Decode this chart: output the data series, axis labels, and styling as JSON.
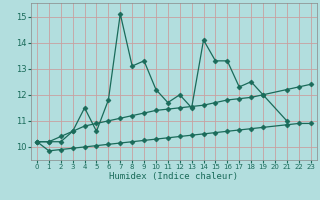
{
  "xlabel": "Humidex (Indice chaleur)",
  "xlim": [
    -0.5,
    23.5
  ],
  "ylim": [
    9.5,
    15.5
  ],
  "yticks": [
    10,
    11,
    12,
    13,
    14,
    15
  ],
  "xticks": [
    0,
    1,
    2,
    3,
    4,
    5,
    6,
    7,
    8,
    9,
    10,
    11,
    12,
    13,
    14,
    15,
    16,
    17,
    18,
    19,
    20,
    21,
    22,
    23
  ],
  "bg_color": "#b2dede",
  "grid_color": "#c8a0a0",
  "line_color": "#1a6b5a",
  "series_jagged": {
    "x": [
      0,
      1,
      2,
      3,
      4,
      5,
      6,
      7,
      8,
      9,
      10,
      11,
      12,
      13,
      14,
      15,
      16,
      17,
      18,
      19,
      21
    ],
    "y": [
      10.2,
      10.2,
      10.2,
      10.6,
      11.5,
      10.6,
      11.8,
      15.1,
      13.1,
      13.3,
      12.2,
      11.7,
      12.0,
      11.5,
      14.1,
      13.3,
      13.3,
      12.3,
      12.5,
      12.0,
      11.0
    ]
  },
  "series_mid": {
    "x": [
      0,
      1,
      2,
      3,
      4,
      5,
      6,
      7,
      8,
      9,
      10,
      11,
      12,
      13,
      14,
      15,
      16,
      17,
      18,
      19,
      21,
      22,
      23
    ],
    "y": [
      10.2,
      10.2,
      10.4,
      10.6,
      10.8,
      10.9,
      11.0,
      11.1,
      11.2,
      11.3,
      11.4,
      11.45,
      11.5,
      11.55,
      11.6,
      11.7,
      11.8,
      11.85,
      11.9,
      12.0,
      12.2,
      12.3,
      12.4
    ]
  },
  "series_low": {
    "x": [
      0,
      1,
      2,
      3,
      4,
      5,
      6,
      7,
      8,
      9,
      10,
      11,
      12,
      13,
      14,
      15,
      16,
      17,
      18,
      19,
      21,
      22,
      23
    ],
    "y": [
      10.2,
      9.85,
      9.9,
      9.95,
      10.0,
      10.05,
      10.1,
      10.15,
      10.2,
      10.25,
      10.3,
      10.35,
      10.4,
      10.45,
      10.5,
      10.55,
      10.6,
      10.65,
      10.7,
      10.75,
      10.85,
      10.9,
      10.9
    ]
  }
}
